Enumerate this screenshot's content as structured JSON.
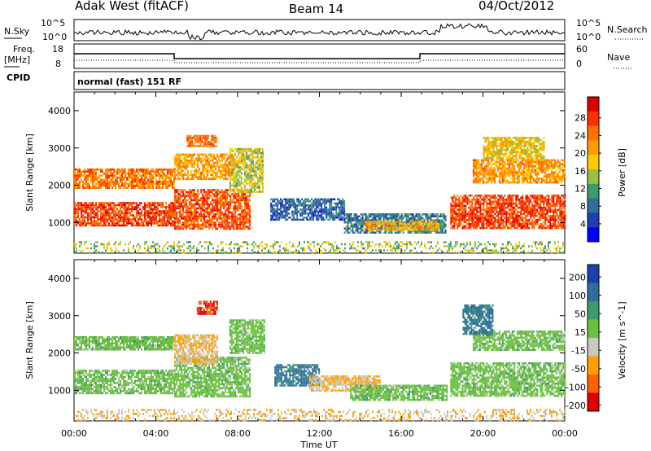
{
  "header": {
    "station": "Adak West (fitACF)",
    "beam": "Beam 14",
    "date": "04/Oct/2012"
  },
  "aux": {
    "nsky_label": "N.Sky",
    "nsearch_label": "N.Search",
    "freq_label": "Freq.",
    "freq_unit": "[MHz]",
    "nave_label": "Nave",
    "cpid_label": "CPID",
    "noise_ticks": [
      "10^5",
      "10^0"
    ],
    "freq_ticks": [
      "18",
      "8"
    ],
    "nave_ticks": [
      "60",
      "0"
    ],
    "cpid_text": "normal (fast) 151 RF"
  },
  "chart_data": [
    {
      "type": "heatmap",
      "name": "power",
      "ylabel": "Slant Range [km]",
      "xlabel": "Time UT",
      "xticks": [
        "00:00",
        "04:00",
        "08:00",
        "12:00",
        "16:00",
        "20:00",
        "00:00"
      ],
      "yticks": [
        "1000",
        "2000",
        "3000",
        "4000"
      ],
      "ylim": [
        180,
        4500
      ],
      "xlim_hours": [
        0,
        24
      ],
      "colorbar": {
        "label": "Power [dB]",
        "ticks": [
          "28",
          "24",
          "20",
          "16",
          "12",
          "8",
          "4"
        ],
        "colors": [
          "#e00000",
          "#ff3000",
          "#ff7000",
          "#ff9c00",
          "#ffcc00",
          "#9ac040",
          "#3d9a6e",
          "#2f6e9a",
          "#1e3fb0",
          "#0000ff"
        ]
      },
      "regions": [
        {
          "t0": 0.0,
          "t1": 4.9,
          "r0": 900,
          "r1": 1550,
          "value": 28
        },
        {
          "t0": 4.9,
          "t1": 8.6,
          "r0": 850,
          "r1": 1900,
          "value": 27
        },
        {
          "t0": 0.0,
          "t1": 4.9,
          "r0": 1950,
          "r1": 2450,
          "value": 24
        },
        {
          "t0": 4.9,
          "t1": 7.8,
          "r0": 2150,
          "r1": 2850,
          "value": 22
        },
        {
          "t0": 5.5,
          "t1": 7.0,
          "r0": 3050,
          "r1": 3350,
          "value": 25
        },
        {
          "t0": 7.6,
          "t1": 9.2,
          "r0": 1800,
          "r1": 3000,
          "value": 16
        },
        {
          "t0": 9.6,
          "t1": 13.2,
          "r0": 1050,
          "r1": 1650,
          "value": 6
        },
        {
          "t0": 13.2,
          "t1": 18.2,
          "r0": 750,
          "r1": 1250,
          "value": 8
        },
        {
          "t0": 14.2,
          "t1": 17.8,
          "r0": 800,
          "r1": 1050,
          "value": 20
        },
        {
          "t0": 18.4,
          "t1": 24.0,
          "r0": 850,
          "r1": 1750,
          "value": 28
        },
        {
          "t0": 19.5,
          "t1": 24.0,
          "r0": 2050,
          "r1": 2700,
          "value": 22
        },
        {
          "t0": 20.0,
          "t1": 23.0,
          "r0": 2700,
          "r1": 3300,
          "value": 18
        },
        {
          "t0": 0.0,
          "t1": 24.0,
          "r0": 200,
          "r1": 500,
          "value": 14
        }
      ]
    },
    {
      "type": "heatmap",
      "name": "velocity",
      "ylabel": "Slant Range [km]",
      "xlabel": "Time UT",
      "xticks": [
        "00:00",
        "04:00",
        "08:00",
        "12:00",
        "16:00",
        "20:00",
        "00:00"
      ],
      "yticks": [
        "1000",
        "2000",
        "3000",
        "4000"
      ],
      "ylim": [
        180,
        4500
      ],
      "xlim_hours": [
        0,
        24
      ],
      "colorbar": {
        "label": "Velocity [m s^-1]",
        "ticks": [
          "200",
          "100",
          "50",
          "15",
          "-15",
          "-50",
          "-100",
          "-200"
        ],
        "colors": [
          "#1e3fb0",
          "#2f6e9a",
          "#3d9a6e",
          "#6cc040",
          "#c8c8c0",
          "#ffa000",
          "#ff6000",
          "#e00000"
        ]
      },
      "regions": [
        {
          "t0": 0.0,
          "t1": 4.9,
          "r0": 900,
          "r1": 1550,
          "value": 0
        },
        {
          "t0": 4.9,
          "t1": 8.6,
          "r0": 850,
          "r1": 1900,
          "value": 0
        },
        {
          "t0": 0.0,
          "t1": 4.9,
          "r0": 2100,
          "r1": 2450,
          "value": 0
        },
        {
          "t0": 4.9,
          "t1": 7.0,
          "r0": 1700,
          "r1": 2500,
          "value": -50
        },
        {
          "t0": 6.0,
          "t1": 7.0,
          "r0": 3050,
          "r1": 3400,
          "value": -200
        },
        {
          "t0": 7.6,
          "t1": 9.3,
          "r0": 2000,
          "r1": 2900,
          "value": 0
        },
        {
          "t0": 9.8,
          "t1": 12.0,
          "r0": 1100,
          "r1": 1700,
          "value": 60
        },
        {
          "t0": 11.5,
          "t1": 15.0,
          "r0": 1000,
          "r1": 1400,
          "value": -50
        },
        {
          "t0": 13.5,
          "t1": 18.2,
          "r0": 750,
          "r1": 1150,
          "value": 0
        },
        {
          "t0": 18.4,
          "t1": 24.0,
          "r0": 850,
          "r1": 1750,
          "value": 0
        },
        {
          "t0": 19.5,
          "t1": 24.0,
          "r0": 2100,
          "r1": 2600,
          "value": 0
        },
        {
          "t0": 19.0,
          "t1": 20.5,
          "r0": 2500,
          "r1": 3300,
          "value": 60
        },
        {
          "t0": 0.0,
          "t1": 24.0,
          "r0": 200,
          "r1": 500,
          "value": -50
        }
      ]
    }
  ]
}
